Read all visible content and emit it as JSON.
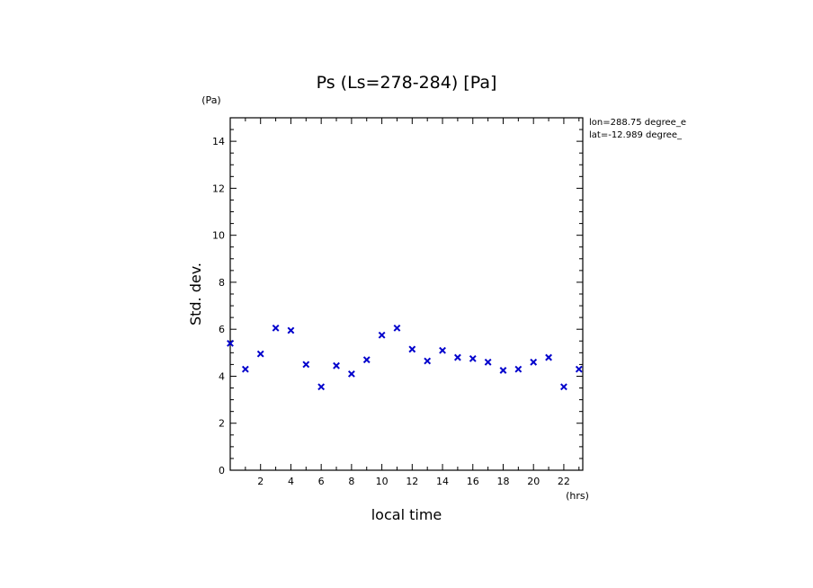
{
  "chart_data": {
    "type": "scatter",
    "title": "Ps (Ls=278-284) [Pa]",
    "xlabel": "local time",
    "xunit": "(hrs)",
    "ylabel": "Std. dev.",
    "yunit": "(Pa)",
    "annotations": [
      "lon=288.75 degree_e",
      "lat=-12.989 degree_"
    ],
    "xlim": [
      0,
      23.25
    ],
    "ylim": [
      0,
      15
    ],
    "xticks": [
      2,
      4,
      6,
      8,
      10,
      12,
      14,
      16,
      18,
      20,
      22
    ],
    "yticks": [
      0,
      2,
      4,
      6,
      8,
      10,
      12,
      14
    ],
    "marker": "x",
    "marker_color": "#0000cc",
    "grid": false,
    "x": [
      0.0,
      1.0,
      2.0,
      3.0,
      4.0,
      5.0,
      6.0,
      7.0,
      8.0,
      9.0,
      10.0,
      11.0,
      12.0,
      13.0,
      14.0,
      15.0,
      16.0,
      17.0,
      18.0,
      19.0,
      20.0,
      21.0,
      22.0,
      23.0
    ],
    "y": [
      5.4,
      4.3,
      4.95,
      6.05,
      5.95,
      4.5,
      3.55,
      4.45,
      4.1,
      4.7,
      5.75,
      6.05,
      5.15,
      4.65,
      5.1,
      4.8,
      4.75,
      4.6,
      4.25,
      4.3,
      4.6,
      4.8,
      3.55,
      4.3
    ]
  }
}
